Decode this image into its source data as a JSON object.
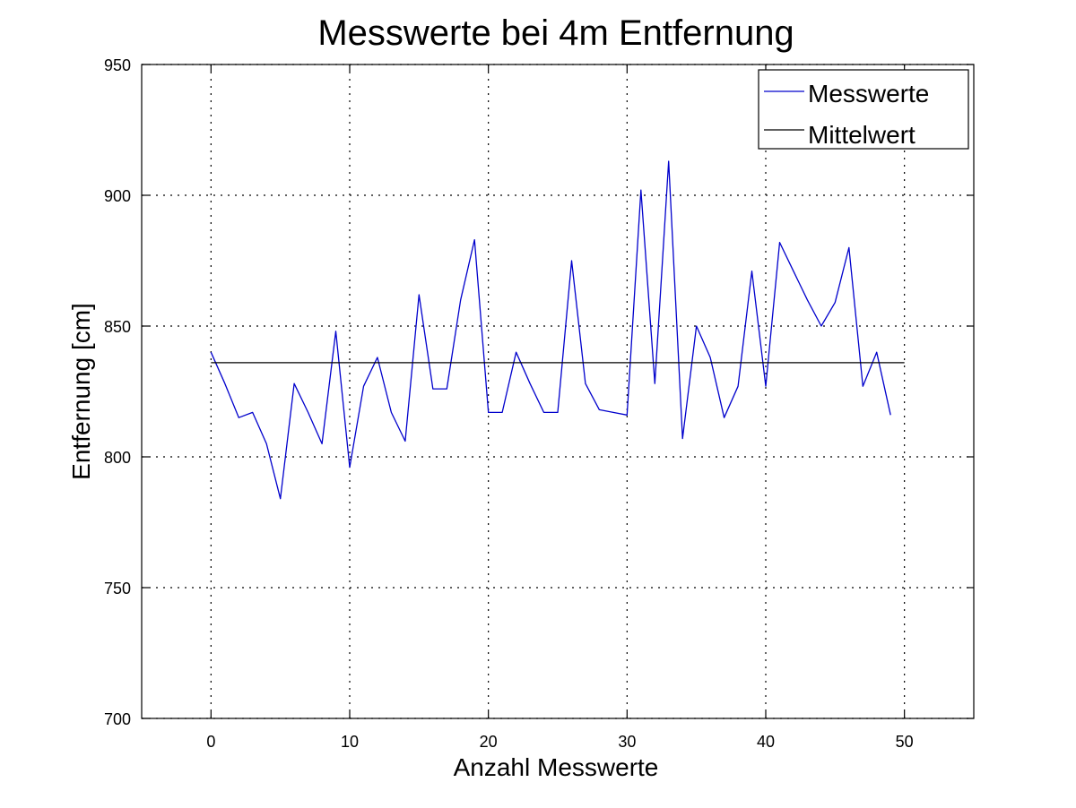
{
  "chart_data": {
    "type": "line",
    "title": "Messwerte bei 4m Entfernung",
    "xlabel": "Anzahl Messwerte",
    "ylabel": "Entfernung [cm]",
    "xlim": [
      -5,
      55
    ],
    "ylim": [
      700,
      950
    ],
    "xticks": [
      0,
      10,
      20,
      30,
      40,
      50
    ],
    "yticks": [
      700,
      750,
      800,
      850,
      900,
      950
    ],
    "grid": true,
    "legend_position": "top-right",
    "series": [
      {
        "name": "Messwerte",
        "color": "#0000cc",
        "x": [
          0,
          1,
          2,
          3,
          4,
          5,
          6,
          7,
          8,
          9,
          10,
          11,
          12,
          13,
          14,
          15,
          16,
          17,
          18,
          19,
          20,
          21,
          22,
          23,
          24,
          25,
          26,
          27,
          28,
          29,
          30,
          31,
          32,
          33,
          34,
          35,
          36,
          37,
          38,
          39,
          40,
          41,
          42,
          43,
          44,
          45,
          46,
          47,
          48,
          49
        ],
        "y": [
          840,
          828,
          815,
          817,
          805,
          784,
          828,
          817,
          805,
          848,
          796,
          827,
          838,
          817,
          806,
          862,
          826,
          826,
          860,
          883,
          817,
          817,
          840,
          828,
          817,
          817,
          875,
          828,
          818,
          817,
          816,
          902,
          828,
          913,
          807,
          850,
          838,
          815,
          827,
          871,
          827,
          882,
          871,
          860,
          850,
          859,
          880,
          827,
          840,
          816
        ]
      },
      {
        "name": "Mittelwert",
        "color": "#000000",
        "x": [
          0,
          50
        ],
        "y": [
          836,
          836
        ]
      }
    ]
  }
}
